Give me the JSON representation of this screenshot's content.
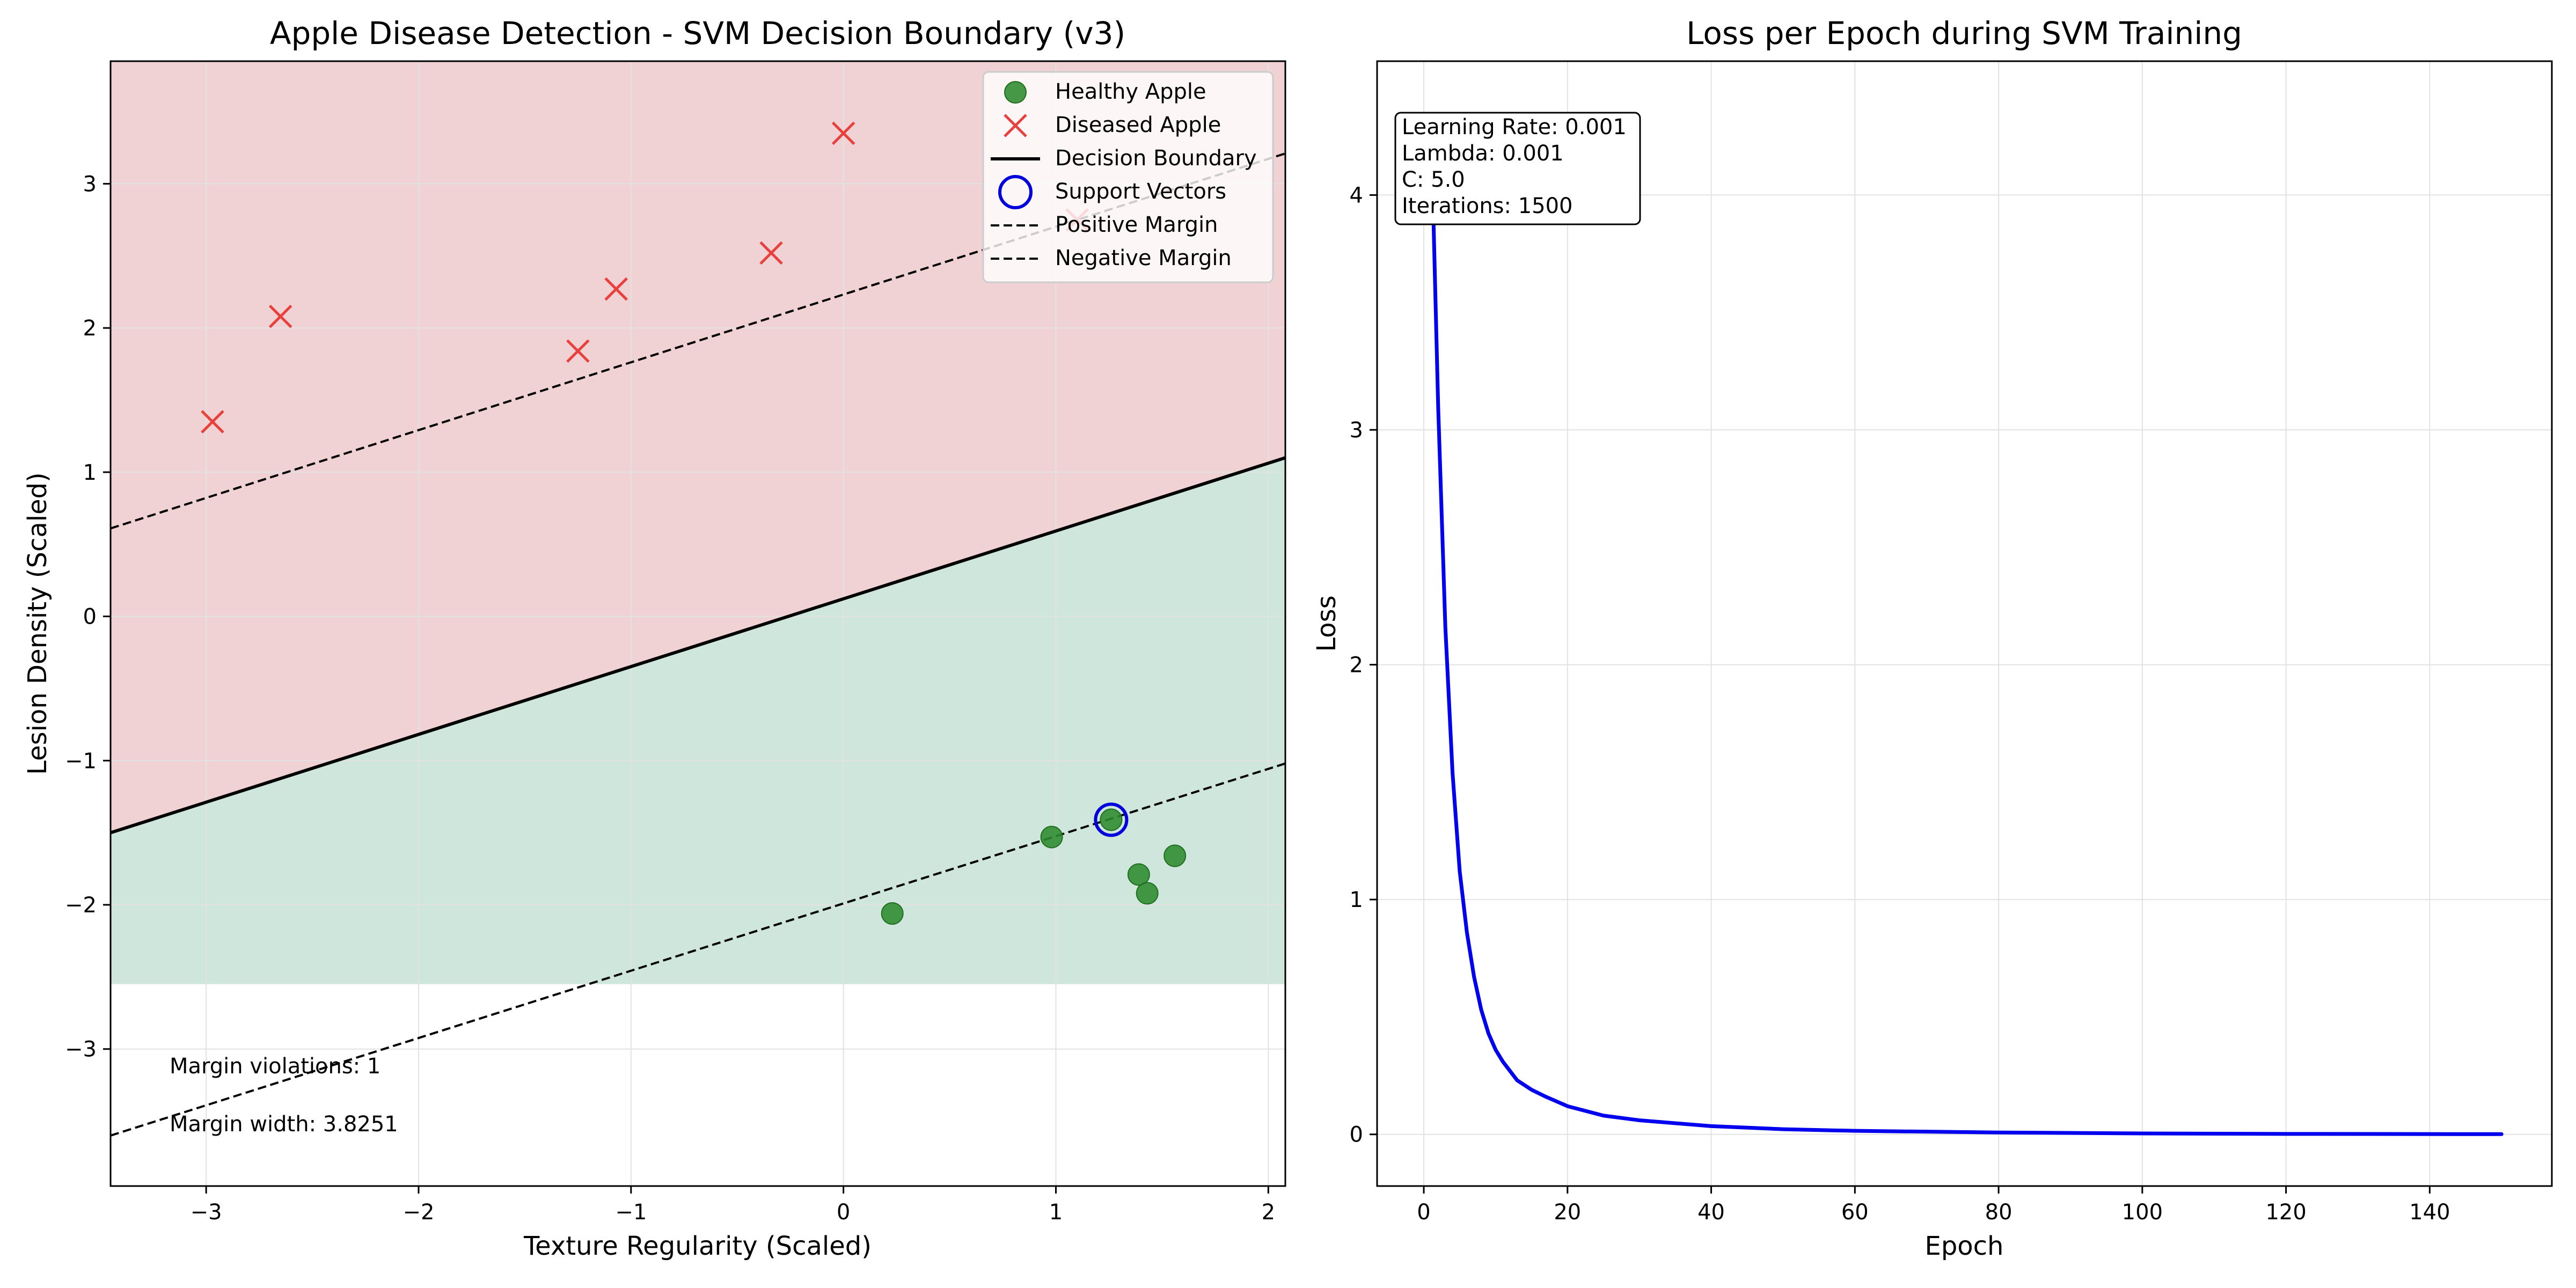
{
  "chart_data": [
    {
      "type": "scatter",
      "title": "Apple Disease Detection - SVM Decision Boundary (v3)",
      "xlabel": "Texture Regularity (Scaled)",
      "ylabel": "Lesion Density (Scaled)",
      "xlim": [
        -3.45,
        2.08
      ],
      "ylim": [
        -3.95,
        3.85
      ],
      "xticks": [
        -3,
        -2,
        -1,
        0,
        1,
        2
      ],
      "yticks": [
        -3,
        -2,
        -1,
        0,
        1,
        2,
        3
      ],
      "xtick_labels": [
        "−3",
        "−2",
        "−1",
        "0",
        "1",
        "2"
      ],
      "ytick_labels": [
        "−3",
        "−2",
        "−1",
        "0",
        "1",
        "2",
        "3"
      ],
      "grid": true,
      "legend_position": "top-right",
      "regions": [
        {
          "class": "diseased",
          "color": "#f0d2d4",
          "y_from": -3.95,
          "y_to": 3.85,
          "boundary": "above-line"
        },
        {
          "class": "healthy",
          "color": "#cfe6dc",
          "y_floor": -2.55
        }
      ],
      "series": [
        {
          "name": "Healthy Apple",
          "marker": "circle",
          "color": "#2e8b2e",
          "x": [
            0.23,
            0.98,
            1.26,
            1.39,
            1.43,
            1.56
          ],
          "y": [
            -2.06,
            -1.53,
            -1.41,
            -1.79,
            -1.92,
            -1.66
          ]
        },
        {
          "name": "Diseased Apple",
          "marker": "x",
          "color": "#e8403d",
          "x": [
            -2.97,
            -2.65,
            -1.25,
            -1.07,
            -0.34,
            0.0,
            1.1
          ],
          "y": [
            1.35,
            2.08,
            1.84,
            2.27,
            2.52,
            3.35,
            2.75
          ]
        },
        {
          "name": "Decision Boundary",
          "style": "solid",
          "color": "#000000",
          "x": [
            -3.45,
            2.08
          ],
          "y": [
            -1.5,
            1.1
          ]
        },
        {
          "name": "Support Vectors",
          "marker": "open-circle",
          "color": "#0000dd",
          "x": [
            1.26
          ],
          "y": [
            -1.41
          ]
        },
        {
          "name": "Positive Margin",
          "style": "dashed",
          "color": "#000000",
          "x": [
            -3.45,
            2.08
          ],
          "y": [
            0.61,
            3.21
          ]
        },
        {
          "name": "Negative Margin",
          "style": "dashed",
          "color": "#000000",
          "x": [
            -3.45,
            2.08
          ],
          "y": [
            -3.6,
            -1.02
          ]
        }
      ],
      "annotations": [
        "Margin violations: 1",
        "Margin width: 3.8251"
      ]
    },
    {
      "type": "line",
      "title": "Loss per Epoch during SVM Training",
      "xlabel": "Epoch",
      "ylabel": "Loss",
      "xlim": [
        -6.5,
        157
      ],
      "ylim": [
        -0.22,
        4.57
      ],
      "xticks": [
        0,
        20,
        40,
        60,
        80,
        100,
        120,
        140
      ],
      "yticks": [
        0,
        1,
        2,
        3,
        4
      ],
      "xtick_labels": [
        "0",
        "20",
        "40",
        "60",
        "80",
        "100",
        "120",
        "140"
      ],
      "ytick_labels": [
        "0",
        "1",
        "2",
        "3",
        "4"
      ],
      "grid": true,
      "series": [
        {
          "name": "",
          "color": "#0000ee",
          "x": [
            1,
            2,
            3,
            4,
            5,
            6,
            7,
            8,
            9,
            10,
            11,
            12,
            13,
            14,
            15,
            17,
            20,
            25,
            30,
            40,
            50,
            60,
            80,
            100,
            120,
            150
          ],
          "y": [
            4.32,
            3.1,
            2.16,
            1.54,
            1.12,
            0.86,
            0.67,
            0.53,
            0.43,
            0.36,
            0.31,
            0.27,
            0.23,
            0.21,
            0.19,
            0.16,
            0.12,
            0.08,
            0.06,
            0.035,
            0.022,
            0.015,
            0.008,
            0.004,
            0.002,
            0.001
          ]
        }
      ],
      "annotation_box": [
        "Learning Rate: 0.001",
        "Lambda: 0.001",
        "C: 5.0",
        "Iterations: 1500"
      ]
    }
  ]
}
